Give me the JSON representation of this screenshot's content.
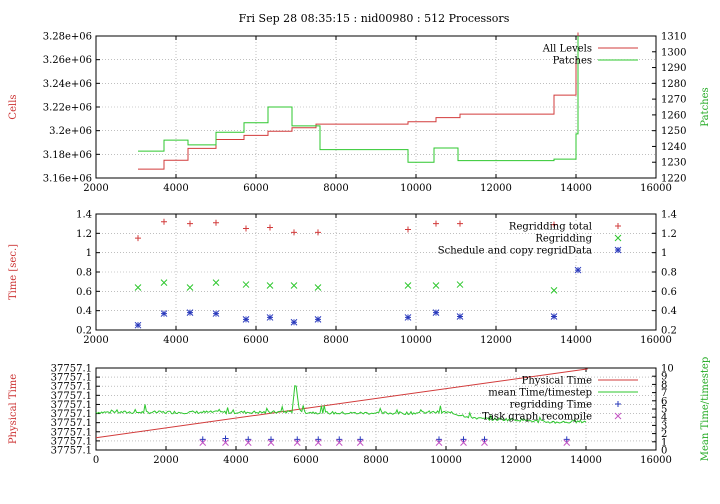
{
  "chart_data": {
    "title": "Fri Sep 28 08:35:15 : nid00980 : 512 Processors",
    "panels": [
      {
        "type": "line",
        "title": "",
        "xlim": [
          2000,
          16000
        ],
        "xticks": [
          "2000",
          "4000",
          "6000",
          "8000",
          "10000",
          "12000",
          "14000",
          "16000"
        ],
        "ylabel": "Cells",
        "ylim": [
          3160000,
          3280000
        ],
        "yticks": [
          "3.16e+06",
          "3.18e+06",
          "3.2e+06",
          "3.22e+06",
          "3.24e+06",
          "3.26e+06",
          "3.28e+06"
        ],
        "y2label": "Patches",
        "y2lim": [
          1220,
          1310
        ],
        "y2ticks": [
          "1220",
          "1230",
          "1240",
          "1250",
          "1260",
          "1270",
          "1280",
          "1290",
          "1300",
          "1310"
        ],
        "grid": true,
        "legend": "top-right",
        "series": [
          {
            "name": "All Levels",
            "axis": "left",
            "color": "#d23b3b",
            "step": true,
            "x": [
              3050,
              3700,
              4300,
              5000,
              5700,
              6300,
              6900,
              7500,
              9800,
              10500,
              11100,
              13450,
              14000,
              14050
            ],
            "y": [
              3167500,
              3175000,
              3185000,
              3192500,
              3196000,
              3199500,
              3202500,
              3205500,
              3207500,
              3211000,
              3214000,
              3230000,
              3260000,
              3283000
            ]
          },
          {
            "name": "Patches",
            "axis": "right",
            "color": "#2ec72e",
            "step": true,
            "x": [
              3050,
              3700,
              4300,
              5000,
              5700,
              6300,
              6900,
              7600,
              9800,
              10450,
              11050,
              13450,
              14000,
              14050
            ],
            "y": [
              1237,
              1244,
              1241,
              1249,
              1255,
              1265,
              1253,
              1238,
              1230,
              1239,
              1231,
              1232,
              1248,
              1310
            ]
          }
        ]
      },
      {
        "type": "scatter",
        "title": "",
        "xlim": [
          2000,
          16000
        ],
        "xticks": [
          "2000",
          "4000",
          "6000",
          "8000",
          "10000",
          "12000",
          "14000",
          "16000"
        ],
        "ylabel": "Time [sec.]",
        "ylim": [
          0.2,
          1.4
        ],
        "yticks": [
          "0.2",
          "0.4",
          "0.6",
          "0.8",
          "1",
          "1.2",
          "1.4"
        ],
        "y2ticks": [
          "0.2",
          "0.4",
          "0.6",
          "0.8",
          "1",
          "1.2",
          "1.4"
        ],
        "grid": true,
        "legend": "top-right",
        "series": [
          {
            "name": "Regridding total",
            "marker": "+",
            "color": "#d23b3b",
            "x": [
              3050,
              3700,
              4350,
              5000,
              5750,
              6350,
              6950,
              7550,
              9800,
              10500,
              11100,
              13450
            ],
            "y": [
              1.15,
              1.32,
              1.3,
              1.31,
              1.25,
              1.26,
              1.21,
              1.21,
              1.24,
              1.3,
              1.3,
              1.29
            ]
          },
          {
            "name": "Regridding",
            "marker": "x",
            "color": "#2ec72e",
            "x": [
              3050,
              3700,
              4350,
              5000,
              5750,
              6350,
              6950,
              7550,
              9800,
              10500,
              11100,
              13450
            ],
            "y": [
              0.64,
              0.69,
              0.64,
              0.69,
              0.67,
              0.66,
              0.66,
              0.64,
              0.66,
              0.66,
              0.67,
              0.61
            ]
          },
          {
            "name": "Schedule and copy regridData",
            "marker": "*",
            "color": "#2b3bbd",
            "x": [
              3050,
              3700,
              4350,
              5000,
              5750,
              6350,
              6950,
              7550,
              9800,
              10500,
              11100,
              13450,
              14050
            ],
            "y": [
              0.25,
              0.37,
              0.38,
              0.37,
              0.31,
              0.33,
              0.28,
              0.31,
              0.33,
              0.38,
              0.34,
              0.34,
              0.82
            ]
          }
        ]
      },
      {
        "type": "line",
        "title": "",
        "xlim": [
          0,
          16000
        ],
        "xticks": [
          "0",
          "2000",
          "4000",
          "6000",
          "8000",
          "10000",
          "12000",
          "14000",
          "16000"
        ],
        "ylabel": "Physical Time",
        "yticks": [
          "37757.1",
          "37757.1",
          "37757.1",
          "37757.1",
          "37757.1",
          "37757.1",
          "37757.1",
          "37757.1",
          "37757.1",
          "37757.1"
        ],
        "y2label": "Mean Time/timestep",
        "y2lim": [
          0,
          10
        ],
        "y2ticks": [
          "0",
          "1",
          "2",
          "3",
          "4",
          "5",
          "6",
          "7",
          "8",
          "9",
          "10"
        ],
        "grid": true,
        "legend": "top-right",
        "series": [
          {
            "name": "Physical Time",
            "color": "#d23b3b",
            "x": [
              0,
              14050
            ],
            "y2": [
              1.5,
              9.9
            ]
          },
          {
            "name": "mean Time/timestep",
            "color": "#2ec72e",
            "noisy": true,
            "x": [
              0,
              1000,
              2000,
              3000,
              4000,
              5000,
              5600,
              5700,
              5800,
              6000,
              7000,
              8000,
              9000,
              9500,
              10000,
              11000,
              12000,
              12600,
              13000,
              13500,
              14000
            ],
            "y2": [
              4.6,
              4.6,
              4.6,
              4.6,
              4.6,
              4.6,
              4.7,
              8.5,
              5.0,
              4.6,
              4.5,
              4.5,
              4.5,
              4.6,
              4.6,
              3.8,
              3.7,
              3.5,
              3.4,
              3.4,
              3.5
            ]
          },
          {
            "name": "regridding Time",
            "marker": "+",
            "color": "#2b3bbd",
            "x": [
              3050,
              3700,
              4350,
              5000,
              5750,
              6350,
              6950,
              7550,
              9800,
              10500,
              11100,
              13450
            ],
            "y2": [
              1.3,
              1.4,
              1.3,
              1.3,
              1.3,
              1.3,
              1.3,
              1.3,
              1.3,
              1.3,
              1.3,
              1.3
            ]
          },
          {
            "name": "Task graph recompile",
            "marker": "x",
            "color": "#c455c4",
            "x": [
              3050,
              3700,
              4350,
              5000,
              5750,
              6350,
              6950,
              7550,
              9800,
              10500,
              11100,
              13450
            ],
            "y2": [
              0.9,
              0.9,
              0.9,
              0.9,
              0.9,
              0.9,
              0.9,
              0.9,
              0.9,
              0.9,
              0.9,
              0.9
            ]
          }
        ]
      }
    ]
  }
}
